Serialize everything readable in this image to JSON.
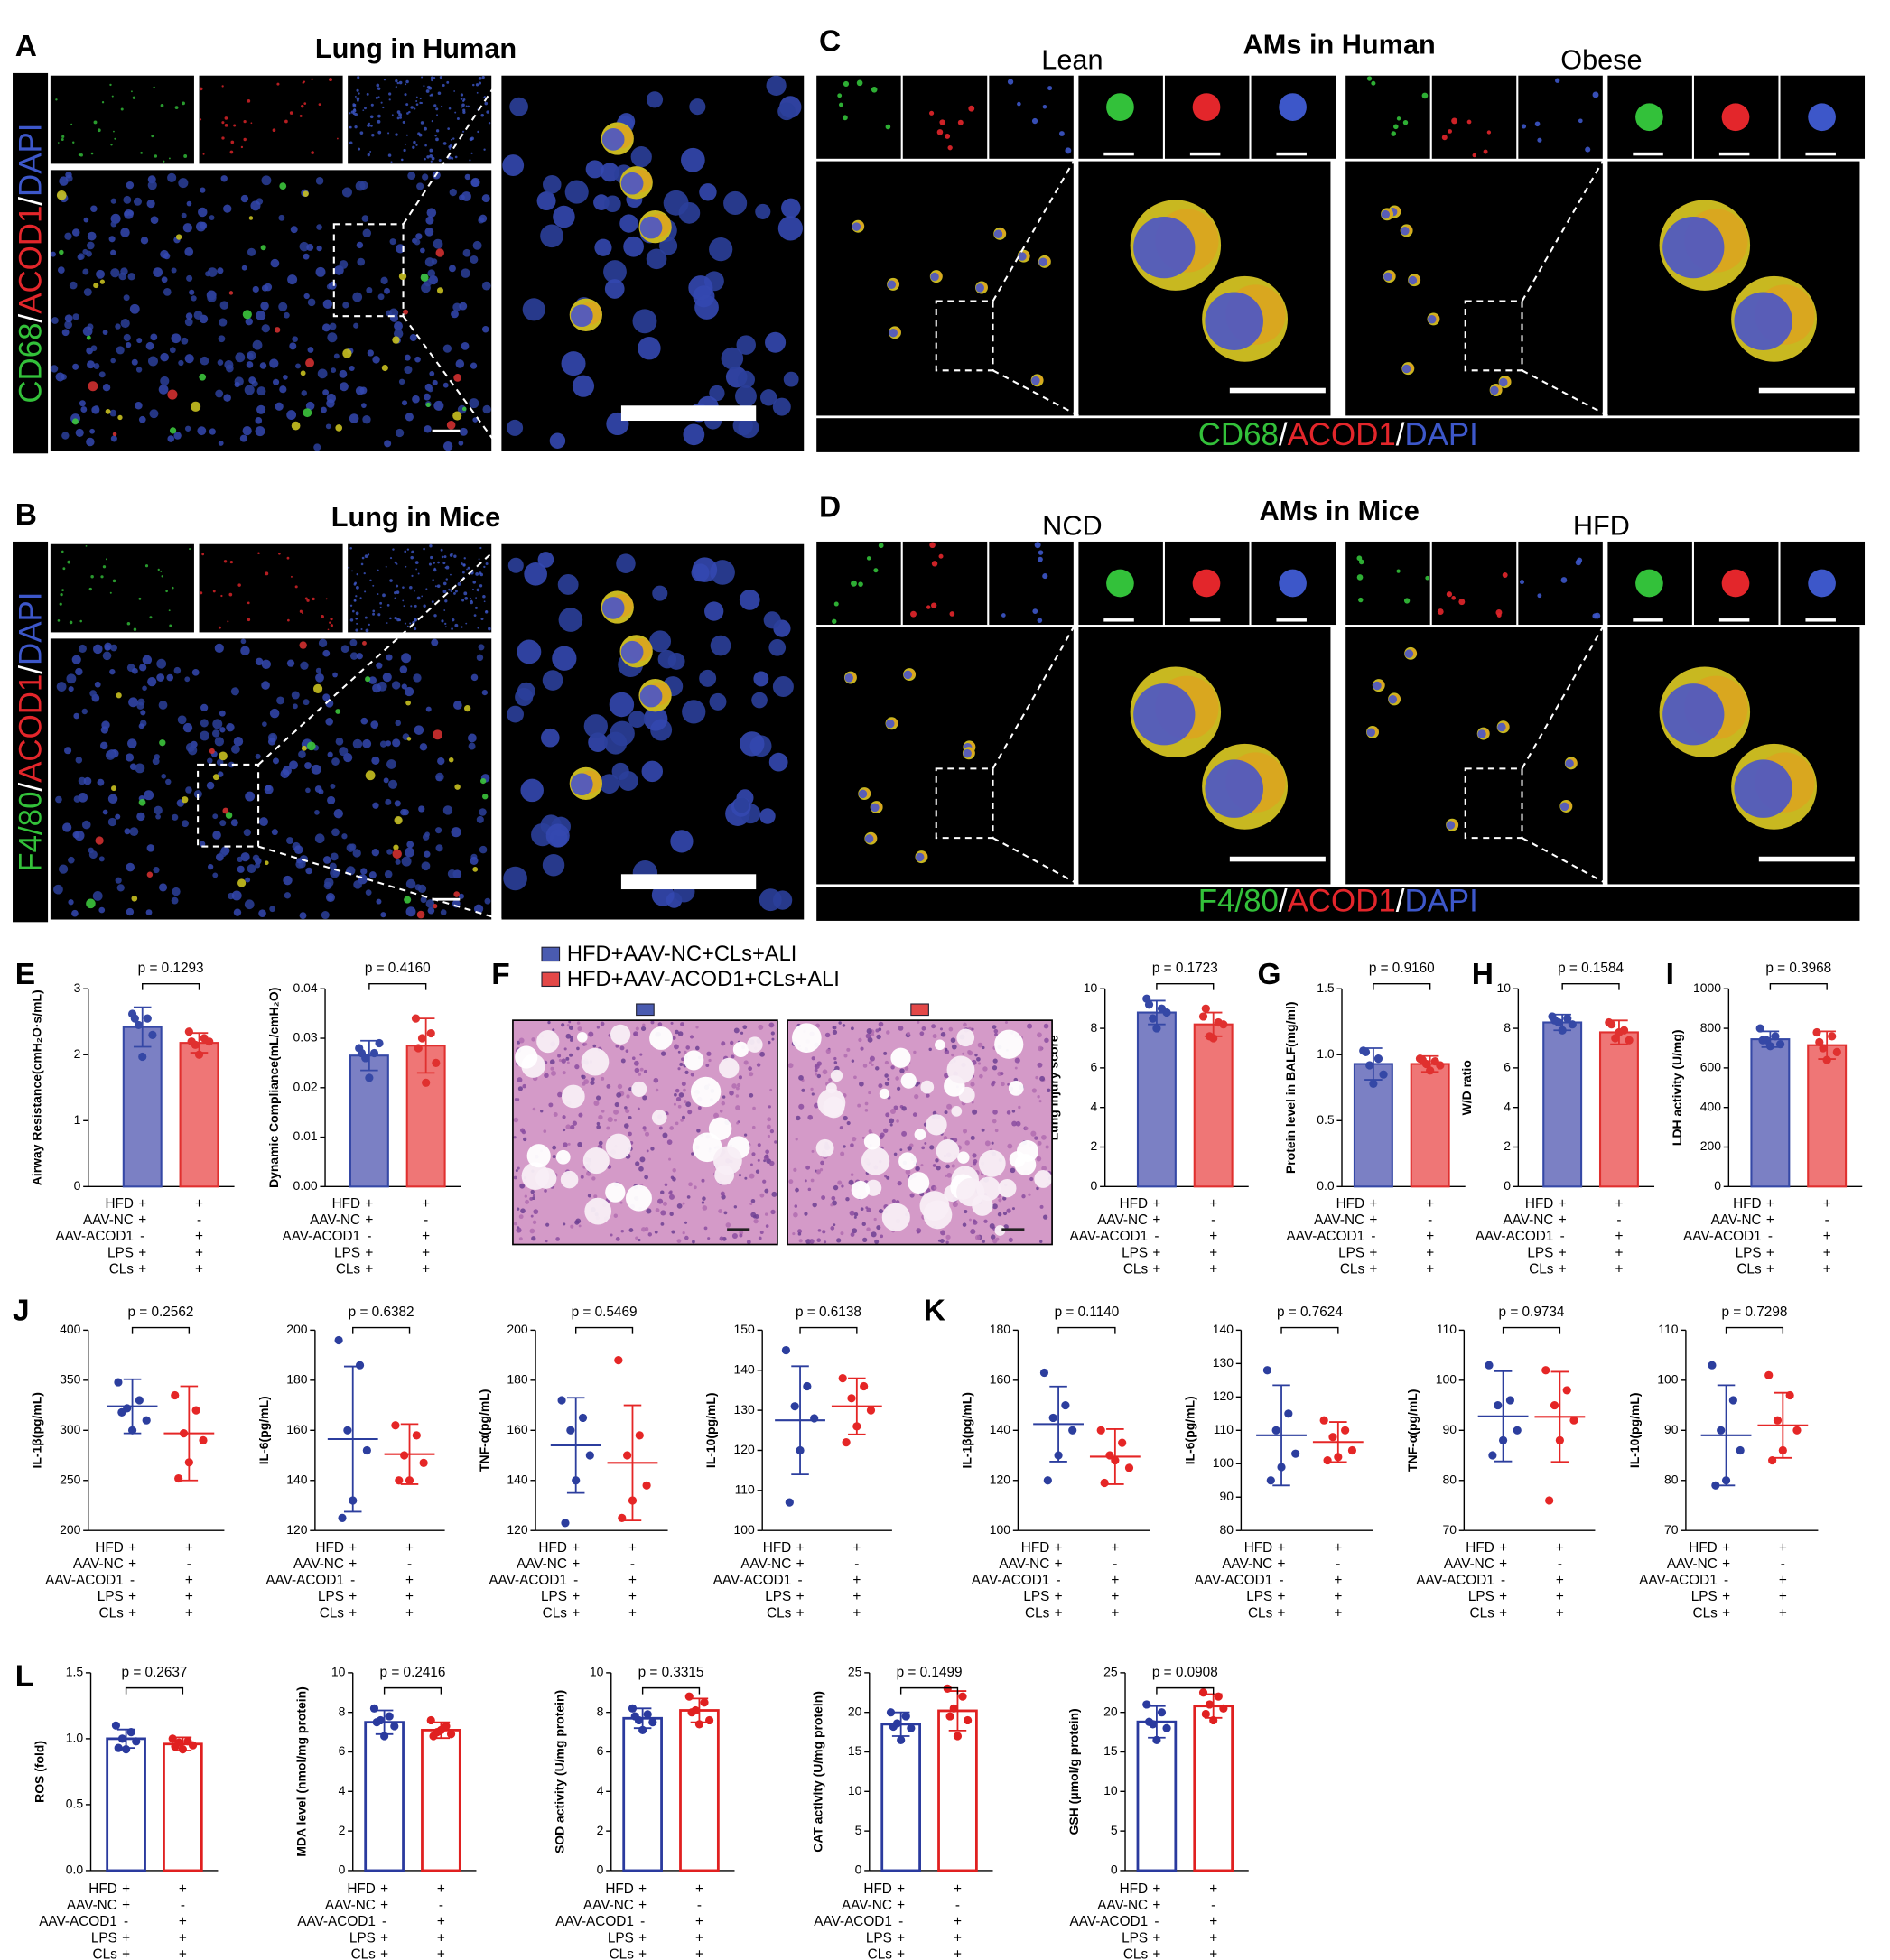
{
  "panels": {
    "A": {
      "letter": "A",
      "title": "Lung in Human",
      "stain": [
        "CD68",
        "/",
        "ACOD1",
        "/",
        "DAPI"
      ]
    },
    "B": {
      "letter": "B",
      "title": "Lung in Mice",
      "stain": [
        "F4/80",
        "/",
        "ACOD1",
        "/",
        "DAPI"
      ]
    },
    "C": {
      "letter": "C",
      "title": "AMs in Human",
      "groups": [
        "Lean",
        "Obese"
      ],
      "stain": [
        "CD68",
        "/",
        "ACOD1",
        "/",
        "DAPI"
      ]
    },
    "D": {
      "letter": "D",
      "title": "AMs in Mice",
      "groups": [
        "NCD",
        "HFD"
      ],
      "stain": [
        "F4/80",
        "/",
        "ACOD1",
        "/",
        "DAPI"
      ]
    }
  },
  "stain_colors": [
    "#33c13a",
    "#ffffff",
    "#e3262b",
    "#ffffff",
    "#3d57c9"
  ],
  "conditions": {
    "rows": [
      "HFD",
      "AAV-NC",
      "AAV-ACOD1",
      "LPS",
      "CLs"
    ],
    "groups": [
      [
        "+",
        "+",
        "-",
        "+",
        "+"
      ],
      [
        "+",
        "-",
        "+",
        "+",
        "+"
      ]
    ]
  },
  "chart_data": [
    {
      "panel": "E",
      "type": "bar",
      "filled": true,
      "ylabel": "Airway Resistance(cmH₂O·s/mL)",
      "ylim": [
        0,
        3
      ],
      "yticks": [
        0,
        1,
        2,
        3
      ],
      "values": [
        2.42,
        2.18
      ],
      "errors": [
        0.3,
        0.15
      ],
      "points": [
        [
          2.62,
          2.55,
          2.45,
          2.3,
          1.97,
          2.55
        ],
        [
          2.35,
          2.25,
          2.15,
          2.2,
          2.0,
          2.2
        ]
      ],
      "colors": [
        "#3548a6",
        "#e0302f"
      ],
      "fills": [
        "#7b80c4",
        "#ef7676"
      ],
      "p_value": "p = 0.1293"
    },
    {
      "type": "bar",
      "filled": true,
      "ylabel": "Dynamic Compliance(mL/cmH₂O)",
      "ylim": [
        0,
        0.04
      ],
      "yticks": [
        {
          "value": 0,
          "label": "0.00"
        },
        0.01,
        0.02,
        0.03,
        0.04
      ],
      "values": [
        0.0265,
        0.0285
      ],
      "errors": [
        0.003,
        0.0055
      ],
      "points": [
        [
          0.028,
          0.027,
          0.026,
          0.029,
          0.022,
          0.027
        ],
        [
          0.034,
          0.031,
          0.03,
          0.025,
          0.021,
          0.028
        ]
      ],
      "colors": [
        "#3548a6",
        "#e0302f"
      ],
      "fills": [
        "#7b80c4",
        "#ef7676"
      ],
      "p_value": "p = 0.4160"
    },
    {
      "panel": "F",
      "type": "bar",
      "filled": true,
      "ylabel": "Lung injury score",
      "ylim": [
        0,
        10
      ],
      "yticks": [
        0,
        2,
        4,
        6,
        8,
        10
      ],
      "values": [
        8.8,
        8.2
      ],
      "errors": [
        0.6,
        0.6
      ],
      "points": [
        [
          9.5,
          9.0,
          8.5,
          8.8,
          8.0,
          9.2
        ],
        [
          8.6,
          8.3,
          7.6,
          8.2,
          7.5,
          9.0
        ]
      ],
      "colors": [
        "#3548a6",
        "#e0302f"
      ],
      "fills": [
        "#7b80c4",
        "#ef7676"
      ],
      "p_value": "p = 0.1723",
      "legend": [
        {
          "name": "HFD+AAV-NC+CLs+ALI",
          "color": "#4a5bb0"
        },
        {
          "name": "HFD+AAV-ACOD1+CLs+ALI",
          "color": "#e34848"
        }
      ]
    },
    {
      "panel": "G",
      "type": "bar",
      "filled": true,
      "ylabel": "Protein level in BALF(mg/ml)",
      "ylim": [
        0,
        1.5
      ],
      "yticks": [
        {
          "value": 0,
          "label": "0.0"
        },
        0.5,
        {
          "value": 1,
          "label": "1.0"
        },
        1.5
      ],
      "values": [
        0.93,
        0.93
      ],
      "errors": [
        0.12,
        0.06
      ],
      "points": [
        [
          1.03,
          0.97,
          0.92,
          0.85,
          0.78,
          1.02
        ],
        [
          0.97,
          0.95,
          0.93,
          0.92,
          0.88,
          0.96
        ]
      ],
      "colors": [
        "#3548a6",
        "#e0302f"
      ],
      "fills": [
        "#7b80c4",
        "#ef7676"
      ],
      "p_value": "p = 0.9160"
    },
    {
      "panel": "H",
      "type": "bar",
      "filled": true,
      "ylabel": "W/D ratio",
      "ylim": [
        0,
        10
      ],
      "yticks": [
        0,
        2,
        4,
        6,
        8,
        10
      ],
      "values": [
        8.3,
        7.8
      ],
      "errors": [
        0.4,
        0.6
      ],
      "points": [
        [
          8.6,
          8.5,
          8.3,
          8.2,
          7.9,
          8.4
        ],
        [
          8.3,
          7.9,
          7.5,
          7.4,
          7.8,
          8.2
        ]
      ],
      "colors": [
        "#3548a6",
        "#e0302f"
      ],
      "fills": [
        "#7b80c4",
        "#ef7676"
      ],
      "p_value": "p = 0.1584"
    },
    {
      "panel": "I",
      "type": "bar",
      "filled": true,
      "ylabel": "LDH activity (U/mg)",
      "ylim": [
        0,
        1000
      ],
      "yticks": [
        0,
        200,
        400,
        600,
        800,
        1000
      ],
      "values": [
        745,
        715
      ],
      "errors": [
        40,
        70
      ],
      "points": [
        [
          800,
          760,
          740,
          720,
          710,
          740
        ],
        [
          780,
          760,
          700,
          680,
          640,
          730
        ]
      ],
      "colors": [
        "#3548a6",
        "#e0302f"
      ],
      "fills": [
        "#7b80c4",
        "#ef7676"
      ],
      "p_value": "p = 0.3968"
    },
    {
      "panel": "J",
      "type": "dot",
      "ylabel": "IL-1β(pg/mL)",
      "ylim": [
        200,
        400
      ],
      "yticks": [
        200,
        250,
        300,
        350,
        400
      ],
      "values": [
        324,
        297
      ],
      "errors": [
        27,
        47
      ],
      "points": [
        [
          348,
          330,
          322,
          310,
          300,
          318
        ],
        [
          335,
          320,
          297,
          290,
          268,
          252
        ]
      ],
      "colors": [
        "#2c3e9e",
        "#e52626"
      ],
      "p_value": "p = 0.2562"
    },
    {
      "type": "dot",
      "ylabel": "IL-6(pg/mL)",
      "ylim": [
        120,
        200
      ],
      "yticks": [
        120,
        140,
        160,
        180,
        200
      ],
      "values": [
        156.5,
        150.5
      ],
      "errors": [
        29,
        12
      ],
      "points": [
        [
          196,
          186,
          160,
          152,
          132,
          125
        ],
        [
          162,
          158,
          150,
          147,
          140,
          140
        ]
      ],
      "colors": [
        "#2c3e9e",
        "#e52626"
      ],
      "p_value": "p = 0.6382"
    },
    {
      "type": "dot",
      "ylabel": "TNF-α(pg/mL)",
      "ylim": [
        120,
        200
      ],
      "yticks": [
        120,
        140,
        160,
        180,
        200
      ],
      "values": [
        154,
        147
      ],
      "errors": [
        19,
        23
      ],
      "points": [
        [
          172,
          165,
          160,
          150,
          140,
          123
        ],
        [
          188,
          158,
          150,
          138,
          132,
          125
        ]
      ],
      "colors": [
        "#2c3e9e",
        "#e52626"
      ],
      "p_value": "p = 0.5469"
    },
    {
      "type": "dot",
      "ylabel": "IL-10(pg/mL)",
      "ylim": [
        100,
        150
      ],
      "yticks": [
        100,
        110,
        120,
        130,
        140,
        150
      ],
      "values": [
        127.5,
        131
      ],
      "errors": [
        13.5,
        7
      ],
      "points": [
        [
          145,
          136,
          131,
          128,
          120,
          107
        ],
        [
          138,
          136,
          133,
          130,
          126,
          122
        ]
      ],
      "colors": [
        "#2c3e9e",
        "#e52626"
      ],
      "p_value": "p = 0.6138"
    },
    {
      "panel": "K",
      "type": "dot",
      "ylabel": "IL-1β(pg/mL)",
      "ylim": [
        100,
        180
      ],
      "yticks": [
        100,
        120,
        140,
        160,
        180
      ],
      "values": [
        142.5,
        129.5
      ],
      "errors": [
        15,
        11
      ],
      "points": [
        [
          163,
          150,
          145,
          140,
          130,
          120
        ],
        [
          140,
          135,
          130,
          125,
          128,
          119
        ]
      ],
      "colors": [
        "#2c3e9e",
        "#e52626"
      ],
      "p_value": "p = 0.1140"
    },
    {
      "type": "dot",
      "ylabel": "IL-6(pg/mL)",
      "ylim": [
        80,
        140
      ],
      "yticks": [
        80,
        90,
        100,
        110,
        120,
        130,
        140
      ],
      "values": [
        108.5,
        106.5
      ],
      "errors": [
        15,
        6
      ],
      "points": [
        [
          128,
          115,
          110,
          103,
          99,
          95
        ],
        [
          113,
          110,
          108,
          104,
          102,
          101
        ]
      ],
      "colors": [
        "#2c3e9e",
        "#e52626"
      ],
      "p_value": "p = 0.7624"
    },
    {
      "type": "dot",
      "ylabel": "TNF-α(pg/mL)",
      "ylim": [
        70,
        110
      ],
      "yticks": [
        70,
        80,
        90,
        100,
        110
      ],
      "values": [
        92.8,
        92.7
      ],
      "errors": [
        9,
        9
      ],
      "points": [
        [
          103,
          96,
          95,
          90,
          88,
          85
        ],
        [
          102,
          98,
          95,
          92,
          88,
          76
        ]
      ],
      "colors": [
        "#2c3e9e",
        "#e52626"
      ],
      "p_value": "p = 0.9734"
    },
    {
      "type": "dot",
      "ylabel": "IL-10(pg/mL)",
      "ylim": [
        70,
        110
      ],
      "yticks": [
        70,
        80,
        90,
        100,
        110
      ],
      "values": [
        89,
        91
      ],
      "errors": [
        10,
        6.5
      ],
      "points": [
        [
          103,
          96,
          90,
          86,
          80,
          79
        ],
        [
          101,
          97,
          92,
          90,
          86,
          84
        ]
      ],
      "colors": [
        "#2c3e9e",
        "#e52626"
      ],
      "p_value": "p = 0.7298"
    },
    {
      "panel": "L",
      "type": "bar",
      "filled": false,
      "ylabel": "ROS (fold)",
      "ylim": [
        0,
        1.5
      ],
      "yticks": [
        {
          "value": 0,
          "label": "0.0"
        },
        0.5,
        {
          "value": 1,
          "label": "1.0"
        },
        1.5
      ],
      "values": [
        1.0,
        0.96
      ],
      "errors": [
        0.07,
        0.05
      ],
      "points": [
        [
          1.1,
          1.05,
          1.0,
          0.98,
          0.92,
          0.93
        ],
        [
          1.0,
          0.98,
          0.97,
          0.95,
          0.92,
          0.94
        ]
      ],
      "colors": [
        "#2a3a9e",
        "#e02020"
      ],
      "p_value": "p = 0.2637"
    },
    {
      "type": "bar",
      "filled": false,
      "ylabel": "MDA level (nmol/mg protein)",
      "ylim": [
        0,
        10
      ],
      "yticks": [
        0,
        2,
        4,
        6,
        8,
        10
      ],
      "values": [
        7.5,
        7.1
      ],
      "errors": [
        0.6,
        0.4
      ],
      "points": [
        [
          8.2,
          7.8,
          7.6,
          7.3,
          6.8,
          7.5
        ],
        [
          7.6,
          7.3,
          7.0,
          6.9,
          7.1,
          6.8
        ]
      ],
      "colors": [
        "#2a3a9e",
        "#e02020"
      ],
      "p_value": "p = 0.2416"
    },
    {
      "type": "bar",
      "filled": false,
      "ylabel": "SOD activity (U/mg protein)",
      "ylim": [
        0,
        10
      ],
      "yticks": [
        0,
        2,
        4,
        6,
        8,
        10
      ],
      "values": [
        7.7,
        8.1
      ],
      "errors": [
        0.5,
        0.6
      ],
      "points": [
        [
          8.2,
          7.9,
          7.6,
          7.5,
          7.1,
          7.8
        ],
        [
          8.8,
          8.5,
          8.1,
          7.6,
          7.4,
          8.0
        ]
      ],
      "colors": [
        "#2a3a9e",
        "#e02020"
      ],
      "p_value": "p = 0.3315"
    },
    {
      "type": "bar",
      "filled": false,
      "ylabel": "CAT activity (U/mg protein)",
      "ylim": [
        0,
        25
      ],
      "yticks": [
        0,
        5,
        10,
        15,
        20,
        25
      ],
      "values": [
        18.5,
        20.2
      ],
      "errors": [
        1.5,
        2.5
      ],
      "points": [
        [
          20,
          19.5,
          18.6,
          18,
          16.5,
          18.2
        ],
        [
          23,
          22,
          20.5,
          19,
          17,
          19.5
        ]
      ],
      "colors": [
        "#2a3a9e",
        "#e02020"
      ],
      "p_value": "p = 0.1499"
    },
    {
      "type": "bar",
      "filled": false,
      "ylabel": "GSH (μmol/g protein)",
      "ylim": [
        0,
        25
      ],
      "yticks": [
        0,
        5,
        10,
        15,
        20,
        25
      ],
      "values": [
        18.8,
        20.8
      ],
      "errors": [
        2,
        1.5
      ],
      "points": [
        [
          21,
          20,
          18.5,
          18,
          16.5,
          18.8
        ],
        [
          22.5,
          22,
          21,
          20.5,
          19,
          19.8
        ]
      ],
      "colors": [
        "#2a3a9e",
        "#e02020"
      ],
      "p_value": "p = 0.0908"
    }
  ]
}
